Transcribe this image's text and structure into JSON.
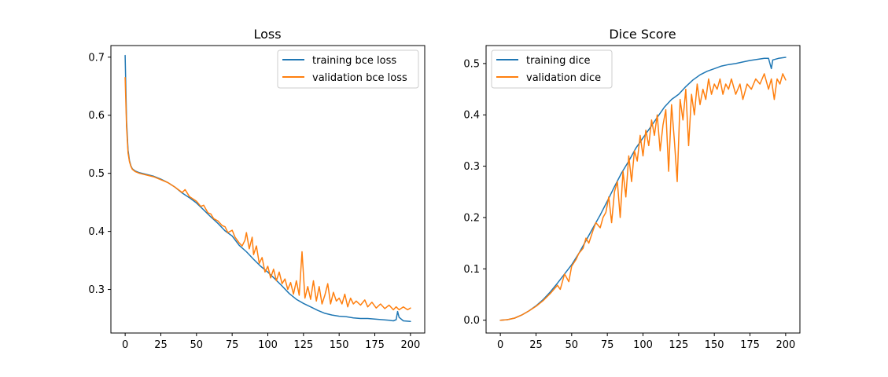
{
  "chart_data": [
    {
      "type": "line",
      "title": "Loss",
      "xlabel": "",
      "ylabel": "",
      "xlim": [
        -10,
        210
      ],
      "ylim": [
        0.225,
        0.72
      ],
      "xticks": [
        0,
        25,
        50,
        75,
        100,
        125,
        150,
        175,
        200
      ],
      "yticks": [
        0.3,
        0.4,
        0.5,
        0.6,
        0.7
      ],
      "ytick_labels": [
        "0.3",
        "0.4",
        "0.5",
        "0.6",
        "0.7"
      ],
      "grid": false,
      "legend": "top-right",
      "series": [
        {
          "name": "training bce loss",
          "color": "#1f77b4",
          "points": [
            [
              0,
              0.703
            ],
            [
              1,
              0.59
            ],
            [
              2,
              0.54
            ],
            [
              3,
              0.522
            ],
            [
              4,
              0.513
            ],
            [
              5,
              0.508
            ],
            [
              7,
              0.504
            ],
            [
              10,
              0.501
            ],
            [
              15,
              0.498
            ],
            [
              20,
              0.495
            ],
            [
              25,
              0.49
            ],
            [
              30,
              0.484
            ],
            [
              35,
              0.476
            ],
            [
              40,
              0.466
            ],
            [
              45,
              0.458
            ],
            [
              50,
              0.449
            ],
            [
              55,
              0.437
            ],
            [
              60,
              0.425
            ],
            [
              65,
              0.414
            ],
            [
              70,
              0.401
            ],
            [
              75,
              0.392
            ],
            [
              80,
              0.376
            ],
            [
              85,
              0.365
            ],
            [
              90,
              0.352
            ],
            [
              95,
              0.34
            ],
            [
              100,
              0.33
            ],
            [
              105,
              0.318
            ],
            [
              110,
              0.306
            ],
            [
              115,
              0.293
            ],
            [
              120,
              0.283
            ],
            [
              125,
              0.276
            ],
            [
              130,
              0.27
            ],
            [
              135,
              0.264
            ],
            [
              140,
              0.259
            ],
            [
              145,
              0.256
            ],
            [
              150,
              0.254
            ],
            [
              155,
              0.253
            ],
            [
              160,
              0.251
            ],
            [
              165,
              0.25
            ],
            [
              170,
              0.25
            ],
            [
              175,
              0.249
            ],
            [
              180,
              0.248
            ],
            [
              185,
              0.247
            ],
            [
              188,
              0.246
            ],
            [
              190,
              0.248
            ],
            [
              191,
              0.262
            ],
            [
              192,
              0.252
            ],
            [
              195,
              0.246
            ],
            [
              200,
              0.245
            ]
          ]
        },
        {
          "name": "validation bce loss",
          "color": "#ff7f0e",
          "points": [
            [
              0,
              0.665
            ],
            [
              1,
              0.58
            ],
            [
              2,
              0.535
            ],
            [
              3,
              0.52
            ],
            [
              4,
              0.512
            ],
            [
              5,
              0.507
            ],
            [
              7,
              0.503
            ],
            [
              10,
              0.5
            ],
            [
              15,
              0.497
            ],
            [
              20,
              0.494
            ],
            [
              25,
              0.489
            ],
            [
              30,
              0.484
            ],
            [
              35,
              0.476
            ],
            [
              40,
              0.467
            ],
            [
              42,
              0.472
            ],
            [
              45,
              0.46
            ],
            [
              50,
              0.452
            ],
            [
              53,
              0.443
            ],
            [
              55,
              0.445
            ],
            [
              58,
              0.432
            ],
            [
              60,
              0.43
            ],
            [
              62,
              0.422
            ],
            [
              65,
              0.418
            ],
            [
              68,
              0.41
            ],
            [
              70,
              0.408
            ],
            [
              72,
              0.398
            ],
            [
              75,
              0.402
            ],
            [
              77,
              0.39
            ],
            [
              80,
              0.38
            ],
            [
              82,
              0.375
            ],
            [
              84,
              0.385
            ],
            [
              85,
              0.398
            ],
            [
              87,
              0.37
            ],
            [
              89,
              0.39
            ],
            [
              90,
              0.36
            ],
            [
              92,
              0.375
            ],
            [
              94,
              0.345
            ],
            [
              96,
              0.355
            ],
            [
              98,
              0.33
            ],
            [
              100,
              0.34
            ],
            [
              102,
              0.32
            ],
            [
              104,
              0.335
            ],
            [
              106,
              0.315
            ],
            [
              108,
              0.33
            ],
            [
              110,
              0.31
            ],
            [
              112,
              0.318
            ],
            [
              114,
              0.3
            ],
            [
              116,
              0.312
            ],
            [
              118,
              0.292
            ],
            [
              120,
              0.315
            ],
            [
              122,
              0.29
            ],
            [
              124,
              0.365
            ],
            [
              126,
              0.285
            ],
            [
              128,
              0.305
            ],
            [
              130,
              0.283
            ],
            [
              132,
              0.315
            ],
            [
              134,
              0.28
            ],
            [
              136,
              0.305
            ],
            [
              138,
              0.275
            ],
            [
              140,
              0.29
            ],
            [
              142,
              0.31
            ],
            [
              144,
              0.275
            ],
            [
              146,
              0.295
            ],
            [
              148,
              0.28
            ],
            [
              150,
              0.285
            ],
            [
              152,
              0.275
            ],
            [
              154,
              0.292
            ],
            [
              156,
              0.27
            ],
            [
              158,
              0.285
            ],
            [
              160,
              0.275
            ],
            [
              162,
              0.28
            ],
            [
              165,
              0.273
            ],
            [
              168,
              0.282
            ],
            [
              170,
              0.27
            ],
            [
              173,
              0.278
            ],
            [
              176,
              0.268
            ],
            [
              179,
              0.275
            ],
            [
              182,
              0.267
            ],
            [
              185,
              0.273
            ],
            [
              188,
              0.265
            ],
            [
              190,
              0.27
            ],
            [
              192,
              0.265
            ],
            [
              195,
              0.27
            ],
            [
              198,
              0.265
            ],
            [
              200,
              0.268
            ]
          ]
        }
      ]
    },
    {
      "type": "line",
      "title": "Dice Score",
      "xlabel": "",
      "ylabel": "",
      "xlim": [
        -10,
        210
      ],
      "ylim": [
        -0.025,
        0.535
      ],
      "xticks": [
        0,
        25,
        50,
        75,
        100,
        125,
        150,
        175,
        200
      ],
      "yticks": [
        0.0,
        0.1,
        0.2,
        0.3,
        0.4,
        0.5
      ],
      "ytick_labels": [
        "0.0",
        "0.1",
        "0.2",
        "0.3",
        "0.4",
        "0.5"
      ],
      "grid": false,
      "legend": "top-left",
      "series": [
        {
          "name": "training dice",
          "color": "#1f77b4",
          "points": [
            [
              0,
              0.0
            ],
            [
              5,
              0.001
            ],
            [
              10,
              0.004
            ],
            [
              15,
              0.01
            ],
            [
              20,
              0.018
            ],
            [
              25,
              0.028
            ],
            [
              30,
              0.04
            ],
            [
              35,
              0.055
            ],
            [
              40,
              0.072
            ],
            [
              45,
              0.09
            ],
            [
              50,
              0.108
            ],
            [
              55,
              0.13
            ],
            [
              60,
              0.155
            ],
            [
              65,
              0.18
            ],
            [
              70,
              0.205
            ],
            [
              75,
              0.232
            ],
            [
              80,
              0.26
            ],
            [
              85,
              0.287
            ],
            [
              90,
              0.31
            ],
            [
              95,
              0.335
            ],
            [
              100,
              0.355
            ],
            [
              105,
              0.375
            ],
            [
              110,
              0.395
            ],
            [
              115,
              0.415
            ],
            [
              120,
              0.43
            ],
            [
              125,
              0.44
            ],
            [
              130,
              0.455
            ],
            [
              135,
              0.468
            ],
            [
              140,
              0.478
            ],
            [
              145,
              0.485
            ],
            [
              150,
              0.49
            ],
            [
              155,
              0.495
            ],
            [
              160,
              0.498
            ],
            [
              165,
              0.5
            ],
            [
              170,
              0.503
            ],
            [
              175,
              0.506
            ],
            [
              180,
              0.508
            ],
            [
              185,
              0.51
            ],
            [
              188,
              0.51
            ],
            [
              190,
              0.49
            ],
            [
              191,
              0.507
            ],
            [
              195,
              0.51
            ],
            [
              200,
              0.512
            ]
          ]
        },
        {
          "name": "validation dice",
          "color": "#ff7f0e",
          "points": [
            [
              0,
              0.0
            ],
            [
              5,
              0.001
            ],
            [
              10,
              0.004
            ],
            [
              15,
              0.01
            ],
            [
              20,
              0.018
            ],
            [
              25,
              0.027
            ],
            [
              30,
              0.038
            ],
            [
              35,
              0.052
            ],
            [
              40,
              0.068
            ],
            [
              42,
              0.06
            ],
            [
              45,
              0.09
            ],
            [
              48,
              0.075
            ],
            [
              50,
              0.105
            ],
            [
              53,
              0.118
            ],
            [
              55,
              0.13
            ],
            [
              58,
              0.14
            ],
            [
              60,
              0.16
            ],
            [
              62,
              0.15
            ],
            [
              65,
              0.175
            ],
            [
              67,
              0.19
            ],
            [
              70,
              0.18
            ],
            [
              72,
              0.2
            ],
            [
              74,
              0.21
            ],
            [
              76,
              0.24
            ],
            [
              78,
              0.19
            ],
            [
              80,
              0.25
            ],
            [
              82,
              0.27
            ],
            [
              84,
              0.2
            ],
            [
              86,
              0.29
            ],
            [
              88,
              0.24
            ],
            [
              90,
              0.32
            ],
            [
              92,
              0.27
            ],
            [
              94,
              0.33
            ],
            [
              96,
              0.31
            ],
            [
              98,
              0.36
            ],
            [
              100,
              0.32
            ],
            [
              102,
              0.37
            ],
            [
              104,
              0.34
            ],
            [
              106,
              0.39
            ],
            [
              108,
              0.36
            ],
            [
              110,
              0.4
            ],
            [
              112,
              0.33
            ],
            [
              114,
              0.38
            ],
            [
              116,
              0.41
            ],
            [
              118,
              0.29
            ],
            [
              120,
              0.42
            ],
            [
              122,
              0.35
            ],
            [
              124,
              0.27
            ],
            [
              126,
              0.43
            ],
            [
              128,
              0.39
            ],
            [
              130,
              0.45
            ],
            [
              132,
              0.34
            ],
            [
              134,
              0.44
            ],
            [
              136,
              0.4
            ],
            [
              138,
              0.46
            ],
            [
              140,
              0.42
            ],
            [
              142,
              0.45
            ],
            [
              144,
              0.43
            ],
            [
              146,
              0.47
            ],
            [
              148,
              0.44
            ],
            [
              150,
              0.46
            ],
            [
              152,
              0.45
            ],
            [
              154,
              0.47
            ],
            [
              156,
              0.44
            ],
            [
              158,
              0.46
            ],
            [
              160,
              0.45
            ],
            [
              162,
              0.47
            ],
            [
              165,
              0.44
            ],
            [
              168,
              0.46
            ],
            [
              170,
              0.43
            ],
            [
              173,
              0.46
            ],
            [
              176,
              0.45
            ],
            [
              179,
              0.47
            ],
            [
              182,
              0.46
            ],
            [
              185,
              0.48
            ],
            [
              188,
              0.45
            ],
            [
              190,
              0.47
            ],
            [
              192,
              0.43
            ],
            [
              194,
              0.47
            ],
            [
              196,
              0.46
            ],
            [
              198,
              0.48
            ],
            [
              200,
              0.468
            ]
          ]
        }
      ]
    }
  ]
}
